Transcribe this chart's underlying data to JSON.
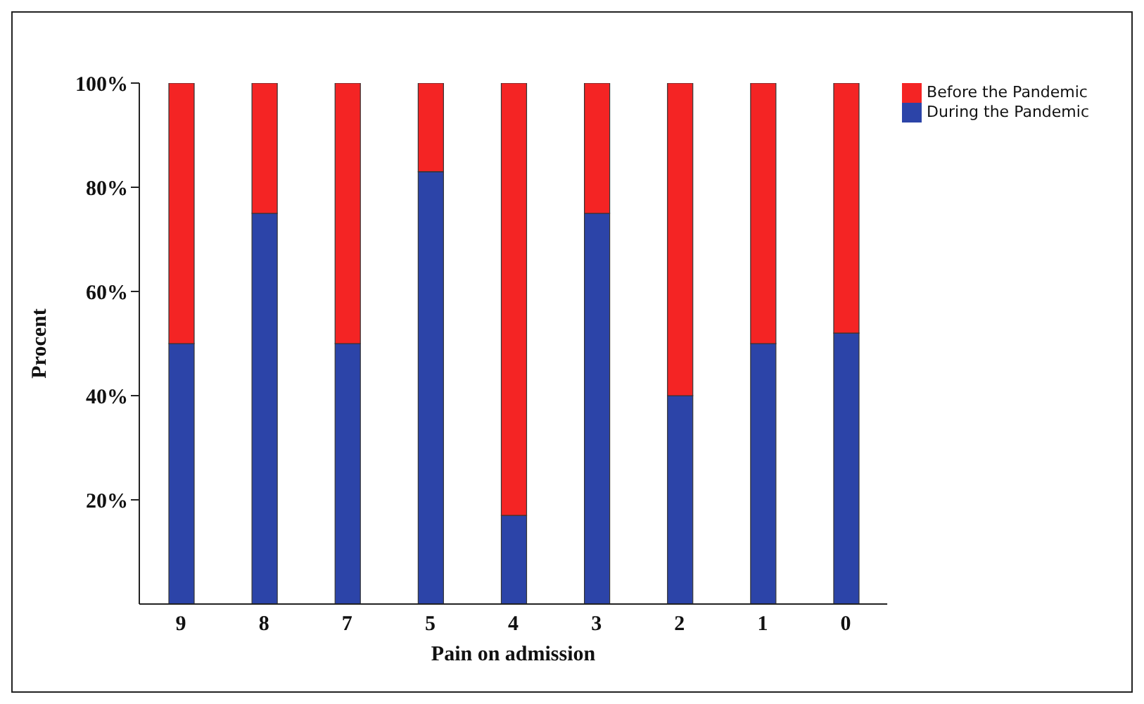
{
  "chart_data": {
    "type": "bar",
    "stacked": true,
    "xlabel": "Pain on admission",
    "ylabel": "Procent",
    "categories": [
      "9",
      "8",
      "7",
      "5",
      "4",
      "3",
      "2",
      "1",
      "0"
    ],
    "series": [
      {
        "name": "During the Pandemic",
        "color": "#2c44a8",
        "values": [
          50,
          75,
          50,
          83,
          17,
          75,
          40,
          50,
          52
        ]
      },
      {
        "name": "Before the Pandemic",
        "color": "#f42424",
        "values": [
          50,
          25,
          50,
          17,
          83,
          25,
          60,
          50,
          48
        ]
      }
    ],
    "ylim": [
      0,
      100
    ],
    "yticks": [
      {
        "value": 20,
        "label": "20%"
      },
      {
        "value": 40,
        "label": "40%"
      },
      {
        "value": 60,
        "label": "60%"
      },
      {
        "value": 80,
        "label": "80%"
      },
      {
        "value": 100,
        "label": "100%"
      }
    ],
    "grid": false,
    "legend": "top right"
  }
}
